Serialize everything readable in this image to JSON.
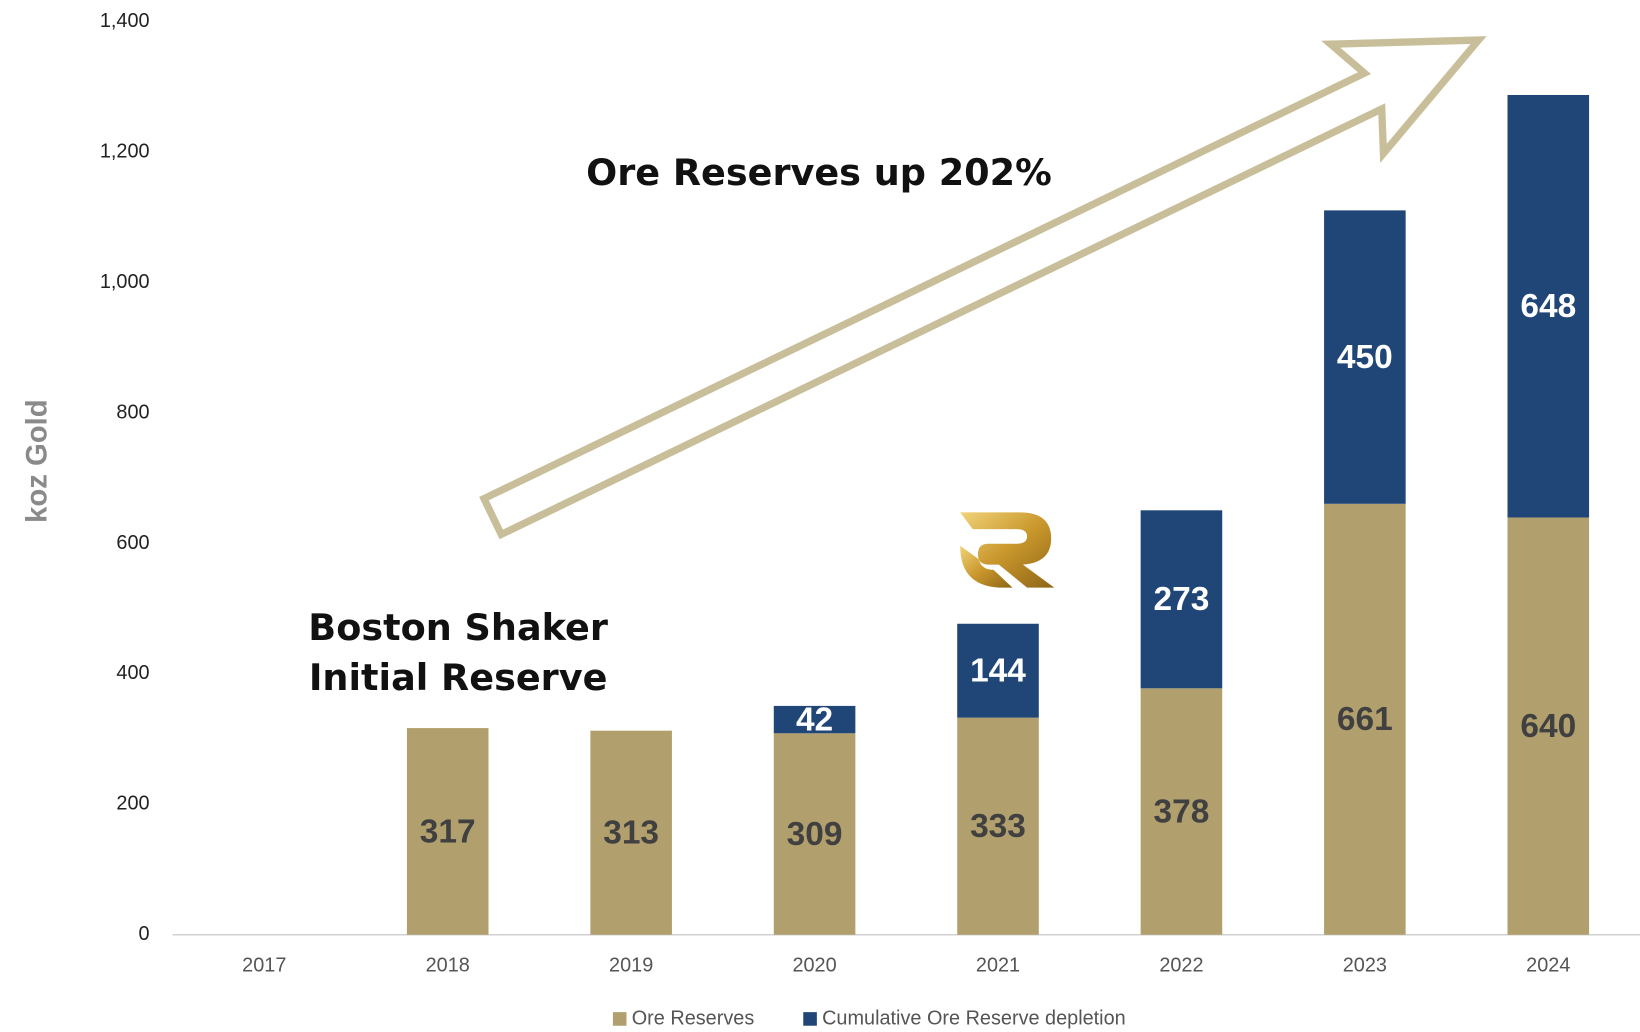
{
  "chart_data": {
    "type": "stacked_bar",
    "y_label": "koz Gold",
    "categories": [
      "2017",
      "2018",
      "2019",
      "2020",
      "2021",
      "2022",
      "2023",
      "2024"
    ],
    "series": [
      {
        "name": "Ore Reserves",
        "color": "#b1a06d",
        "label_color": "#404040",
        "values": [
          null,
          317,
          313,
          309,
          333,
          378,
          661,
          640
        ]
      },
      {
        "name": "Cumulative Ore Reserve depletion",
        "color": "#1f4677",
        "label_color": "#ffffff",
        "values": [
          null,
          null,
          null,
          42,
          144,
          273,
          450,
          648
        ]
      }
    ],
    "ylim": [
      0,
      1400
    ],
    "yticks": [
      0,
      200,
      400,
      600,
      800,
      {
        "value": 1000,
        "label": "1,000"
      },
      {
        "value": 1200,
        "label": "1,200"
      },
      {
        "value": 1400,
        "label": "1,400"
      }
    ],
    "annotations": [
      "Ore Reserves up 202%",
      "Boston Shaker",
      "Initial Reserve"
    ],
    "legend": "bottom"
  }
}
